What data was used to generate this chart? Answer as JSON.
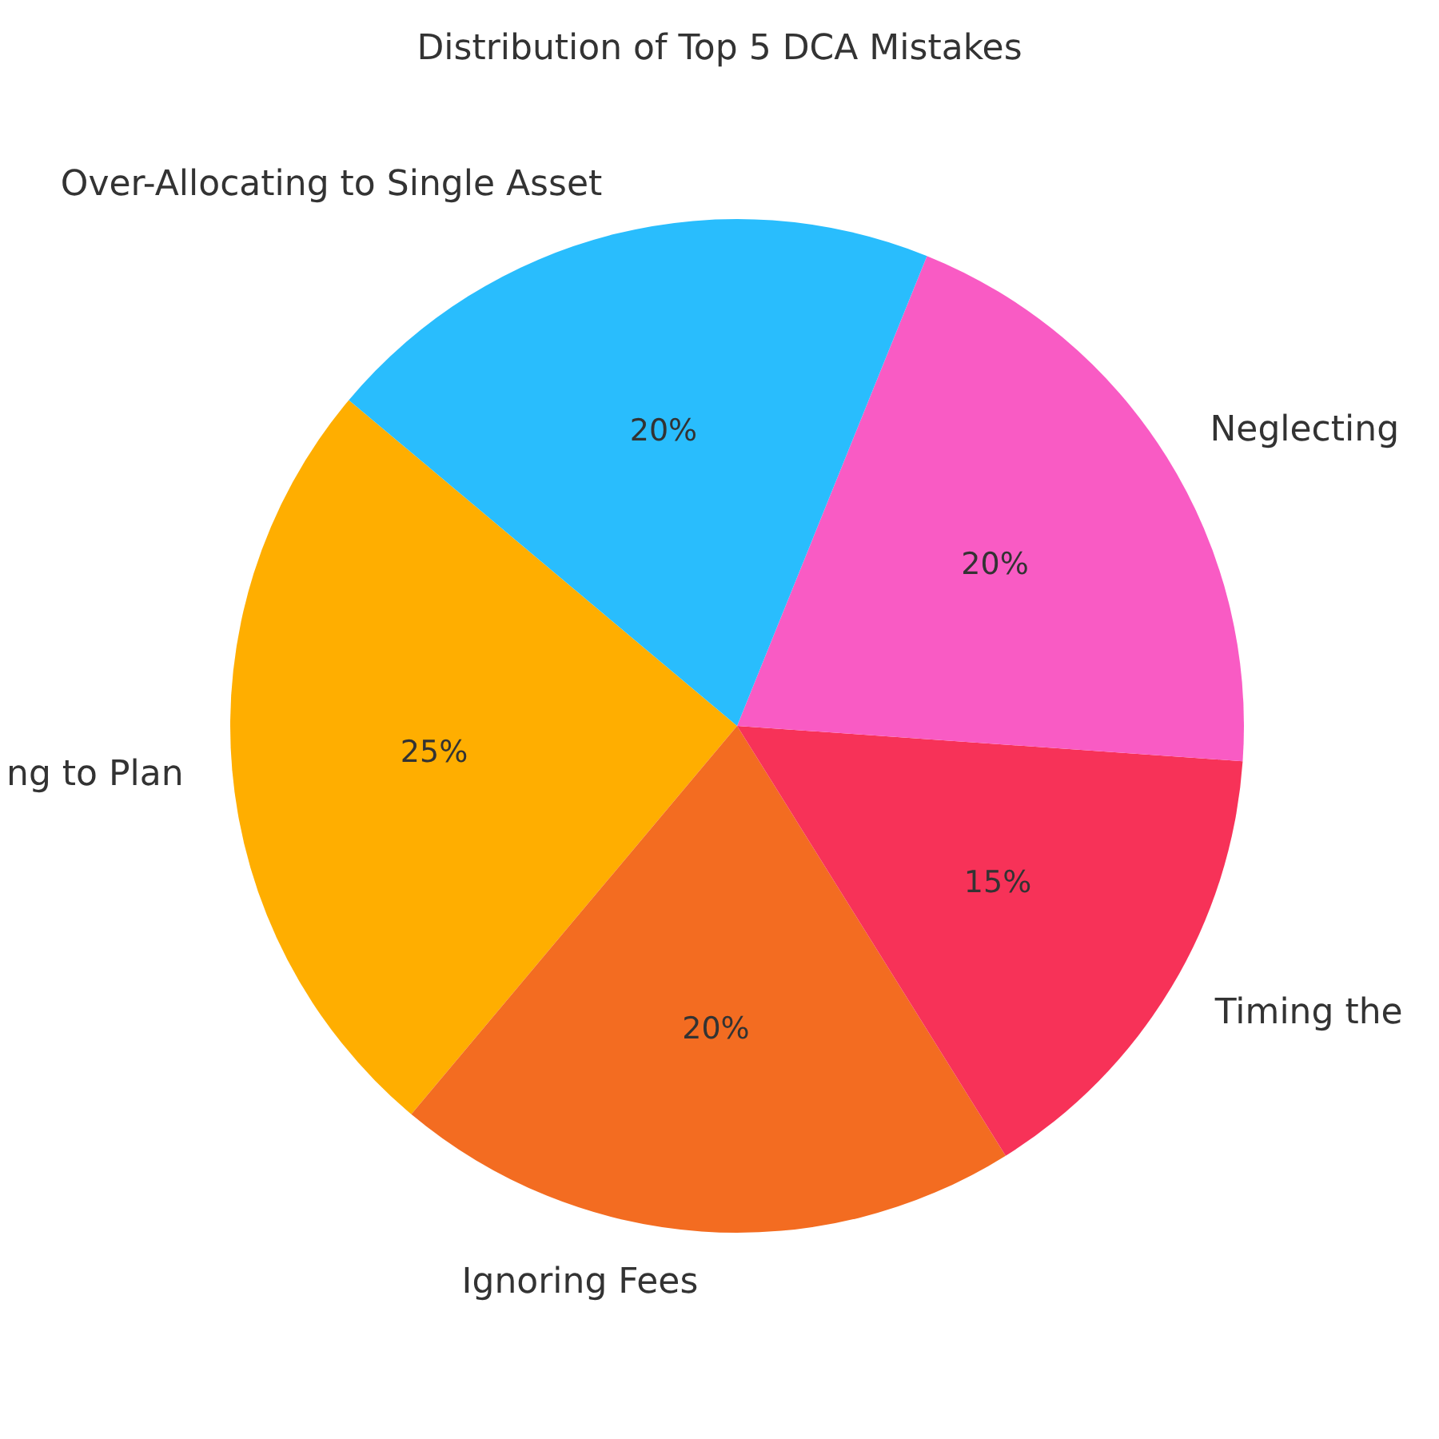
{
  "chart_data": {
    "type": "pie",
    "title": "Distribution of Top 5 DCA Mistakes",
    "categories": [
      "ng to Plan",
      "Ignoring Fees",
      "Timing the",
      "Neglecting",
      "Over-Allocating to Single Asset"
    ],
    "values": [
      25,
      20,
      15,
      20,
      20
    ],
    "colors": [
      "#ffae00",
      "#f36c21",
      "#f73258",
      "#f95bc4",
      "#29bdfd"
    ],
    "value_labels": [
      "25%",
      "20%",
      "15%",
      "20%",
      "20%"
    ]
  }
}
